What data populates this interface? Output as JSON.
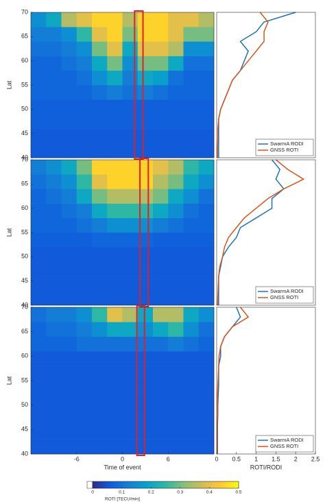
{
  "chart_data": [
    {
      "type": "heatmap",
      "ylabel": "Lat",
      "xlim": [
        -12,
        12
      ],
      "ylim": [
        40,
        70
      ],
      "yticks": [
        40,
        45,
        50,
        55,
        60,
        65,
        70
      ],
      "xbins": [
        -12,
        -10,
        -8,
        -6,
        -4,
        -2,
        0,
        2,
        4,
        6,
        8,
        10,
        12
      ],
      "ybins": [
        40,
        43,
        46,
        49,
        52,
        55,
        58,
        61,
        64,
        67,
        70
      ],
      "highlight_x": [
        1.6,
        2.7
      ],
      "highlight_color": "#e0202a",
      "values": [
        [
          0.06,
          0.06,
          0.06,
          0.06,
          0.06,
          0.06,
          0.06,
          0.06,
          0.06,
          0.06,
          0.06,
          0.06
        ],
        [
          0.06,
          0.06,
          0.06,
          0.06,
          0.06,
          0.06,
          0.06,
          0.06,
          0.06,
          0.06,
          0.06,
          0.06
        ],
        [
          0.07,
          0.07,
          0.07,
          0.07,
          0.07,
          0.07,
          0.07,
          0.07,
          0.07,
          0.07,
          0.07,
          0.07
        ],
        [
          0.07,
          0.07,
          0.07,
          0.07,
          0.07,
          0.07,
          0.07,
          0.07,
          0.07,
          0.07,
          0.07,
          0.07
        ],
        [
          0.08,
          0.08,
          0.08,
          0.08,
          0.1,
          0.12,
          0.1,
          0.12,
          0.1,
          0.08,
          0.08,
          0.08
        ],
        [
          0.08,
          0.08,
          0.08,
          0.1,
          0.15,
          0.2,
          0.12,
          0.2,
          0.18,
          0.1,
          0.08,
          0.08
        ],
        [
          0.08,
          0.08,
          0.1,
          0.12,
          0.2,
          0.3,
          0.15,
          0.3,
          0.3,
          0.2,
          0.1,
          0.1
        ],
        [
          0.1,
          0.1,
          0.12,
          0.15,
          0.3,
          0.4,
          0.2,
          0.4,
          0.4,
          0.35,
          0.15,
          0.15
        ],
        [
          0.12,
          0.12,
          0.15,
          0.25,
          0.4,
          0.45,
          0.3,
          0.45,
          0.45,
          0.4,
          0.3,
          0.3
        ],
        [
          0.15,
          0.2,
          0.35,
          0.4,
          0.45,
          0.45,
          0.35,
          0.45,
          0.45,
          0.4,
          0.4,
          0.35
        ]
      ]
    },
    {
      "type": "heatmap",
      "ylabel": "Lat",
      "xlim": [
        -12,
        12
      ],
      "ylim": [
        40,
        70
      ],
      "yticks": [
        40,
        45,
        50,
        55,
        60,
        65,
        70
      ],
      "xbins": [
        -12,
        -10,
        -8,
        -6,
        -4,
        -2,
        0,
        2,
        4,
        6,
        8,
        10,
        12
      ],
      "ybins": [
        40,
        43,
        46,
        49,
        52,
        55,
        58,
        61,
        64,
        67,
        70
      ],
      "highlight_x": [
        2.3,
        3.4
      ],
      "highlight_color": "#e0202a",
      "values": [
        [
          0.06,
          0.06,
          0.06,
          0.06,
          0.06,
          0.06,
          0.06,
          0.06,
          0.06,
          0.06,
          0.06,
          0.06
        ],
        [
          0.06,
          0.06,
          0.06,
          0.06,
          0.06,
          0.06,
          0.06,
          0.06,
          0.06,
          0.06,
          0.06,
          0.06
        ],
        [
          0.06,
          0.06,
          0.06,
          0.06,
          0.06,
          0.06,
          0.06,
          0.06,
          0.06,
          0.06,
          0.06,
          0.06
        ],
        [
          0.06,
          0.06,
          0.06,
          0.06,
          0.06,
          0.06,
          0.06,
          0.06,
          0.06,
          0.06,
          0.06,
          0.06
        ],
        [
          0.07,
          0.07,
          0.07,
          0.07,
          0.08,
          0.08,
          0.08,
          0.08,
          0.07,
          0.07,
          0.07,
          0.07
        ],
        [
          0.08,
          0.08,
          0.08,
          0.1,
          0.12,
          0.15,
          0.15,
          0.15,
          0.12,
          0.1,
          0.08,
          0.08
        ],
        [
          0.08,
          0.08,
          0.1,
          0.12,
          0.2,
          0.25,
          0.25,
          0.25,
          0.2,
          0.15,
          0.1,
          0.08
        ],
        [
          0.08,
          0.1,
          0.12,
          0.2,
          0.3,
          0.35,
          0.35,
          0.35,
          0.3,
          0.2,
          0.15,
          0.1
        ],
        [
          0.1,
          0.12,
          0.15,
          0.25,
          0.4,
          0.45,
          0.45,
          0.45,
          0.35,
          0.3,
          0.2,
          0.15
        ],
        [
          0.12,
          0.15,
          0.2,
          0.3,
          0.45,
          0.45,
          0.45,
          0.45,
          0.4,
          0.35,
          0.25,
          0.2
        ]
      ]
    },
    {
      "type": "heatmap",
      "ylabel": "Lat",
      "xlabel": "Time of event",
      "xlim": [
        -12,
        12
      ],
      "ylim": [
        40,
        70
      ],
      "yticks": [
        40,
        45,
        50,
        55,
        60,
        65,
        70
      ],
      "xticks": [
        -6,
        0,
        6
      ],
      "xbins": [
        -12,
        -10,
        -8,
        -6,
        -4,
        -2,
        0,
        2,
        4,
        6,
        8,
        10,
        12
      ],
      "ybins": [
        40,
        43,
        46,
        49,
        52,
        55,
        58,
        61,
        64,
        67,
        70
      ],
      "highlight_x": [
        1.9,
        2.9
      ],
      "highlight_color": "#e0202a",
      "values": [
        [
          0.06,
          0.06,
          0.06,
          0.06,
          0.06,
          0.06,
          0.06,
          0.06,
          0.06,
          0.06,
          0.06,
          0.06
        ],
        [
          0.06,
          0.06,
          0.06,
          0.06,
          0.06,
          0.06,
          0.06,
          0.06,
          0.06,
          0.06,
          0.06,
          0.06
        ],
        [
          0.06,
          0.06,
          0.06,
          0.06,
          0.06,
          0.06,
          0.06,
          0.06,
          0.06,
          0.06,
          0.06,
          0.06
        ],
        [
          0.06,
          0.06,
          0.06,
          0.06,
          0.06,
          0.06,
          0.06,
          0.06,
          0.06,
          0.06,
          0.06,
          0.06
        ],
        [
          0.06,
          0.06,
          0.06,
          0.06,
          0.06,
          0.06,
          0.06,
          0.06,
          0.06,
          0.06,
          0.06,
          0.06
        ],
        [
          0.06,
          0.06,
          0.06,
          0.06,
          0.06,
          0.06,
          0.06,
          0.06,
          0.06,
          0.06,
          0.06,
          0.06
        ],
        [
          0.06,
          0.06,
          0.06,
          0.06,
          0.06,
          0.06,
          0.06,
          0.06,
          0.06,
          0.06,
          0.06,
          0.06
        ],
        [
          0.08,
          0.08,
          0.08,
          0.1,
          0.1,
          0.1,
          0.1,
          0.1,
          0.1,
          0.12,
          0.1,
          0.08
        ],
        [
          0.08,
          0.1,
          0.1,
          0.12,
          0.15,
          0.2,
          0.2,
          0.15,
          0.2,
          0.25,
          0.15,
          0.1
        ],
        [
          0.1,
          0.12,
          0.12,
          0.15,
          0.25,
          0.4,
          0.35,
          0.2,
          0.35,
          0.35,
          0.2,
          0.15
        ]
      ]
    },
    {
      "type": "line",
      "xlim": [
        0,
        2.5
      ],
      "ylim": [
        40,
        70
      ],
      "legend": "lower right",
      "y": [
        40,
        42,
        44,
        46,
        48,
        50,
        52,
        54,
        56,
        58,
        60,
        62,
        64,
        66,
        68,
        70
      ],
      "series": [
        {
          "name": "SwarmA RODI",
          "color": "#1f72b8",
          "values": [
            0.05,
            0.05,
            0.05,
            0.05,
            0.05,
            0.1,
            0.2,
            0.3,
            0.4,
            0.6,
            0.7,
            0.8,
            0.6,
            1.0,
            1.2,
            2.0
          ]
        },
        {
          "name": "GNSS ROTI",
          "color": "#d9541a",
          "values": [
            0.02,
            0.02,
            0.03,
            0.03,
            0.05,
            0.1,
            0.2,
            0.3,
            0.4,
            0.6,
            0.8,
            1.0,
            1.2,
            1.2,
            1.3,
            1.1
          ]
        }
      ]
    },
    {
      "type": "line",
      "xlim": [
        0,
        2.5
      ],
      "ylim": [
        40,
        70
      ],
      "legend": "lower right",
      "y": [
        40,
        42,
        44,
        46,
        48,
        50,
        52,
        54,
        56,
        58,
        60,
        62,
        64,
        66,
        68,
        70
      ],
      "series": [
        {
          "name": "SwarmA RODI",
          "color": "#1f72b8",
          "values": [
            0.05,
            0.05,
            0.05,
            0.05,
            0.1,
            0.15,
            0.3,
            0.5,
            0.6,
            1.0,
            1.4,
            1.4,
            1.7,
            1.5,
            1.6,
            1.4
          ]
        },
        {
          "name": "GNSS ROTI",
          "color": "#d9541a",
          "values": [
            0.02,
            0.03,
            0.04,
            0.05,
            0.08,
            0.15,
            0.2,
            0.3,
            0.5,
            0.7,
            1.0,
            1.3,
            1.7,
            2.2,
            1.8,
            1.5
          ]
        }
      ]
    },
    {
      "type": "line",
      "xlim": [
        0,
        2.5
      ],
      "ylim": [
        40,
        70
      ],
      "legend": "lower right",
      "xlabel": "ROTI/RODI",
      "xticks": [
        0,
        0.5,
        1,
        1.5,
        2,
        2.5
      ],
      "y": [
        40,
        42,
        44,
        46,
        48,
        50,
        52,
        54,
        56,
        58,
        60,
        62,
        64,
        66,
        68,
        70
      ],
      "series": [
        {
          "name": "SwarmA RODI",
          "color": "#1f72b8",
          "values": [
            0.02,
            0.02,
            0.02,
            0.02,
            0.03,
            0.03,
            0.04,
            0.05,
            0.05,
            0.05,
            0.1,
            0.1,
            0.2,
            0.4,
            0.6,
            0.5
          ]
        },
        {
          "name": "GNSS ROTI",
          "color": "#d9541a",
          "values": [
            0.01,
            0.01,
            0.01,
            0.01,
            0.02,
            0.02,
            0.02,
            0.03,
            0.04,
            0.05,
            0.06,
            0.1,
            0.2,
            0.4,
            0.8,
            0.6
          ]
        }
      ]
    },
    {
      "type": "colorbar",
      "label": "ROTI [TECU/min]",
      "clim": [
        0,
        0.5
      ],
      "cticks": [
        0,
        0.1,
        0.2,
        0.3,
        0.4,
        0.5
      ],
      "colors": [
        "#352a87",
        "#0f5cdd",
        "#1481d6",
        "#06a4ca",
        "#2eb7a4",
        "#87bf77",
        "#d1bb59",
        "#fec832",
        "#f9fb0e"
      ]
    }
  ]
}
